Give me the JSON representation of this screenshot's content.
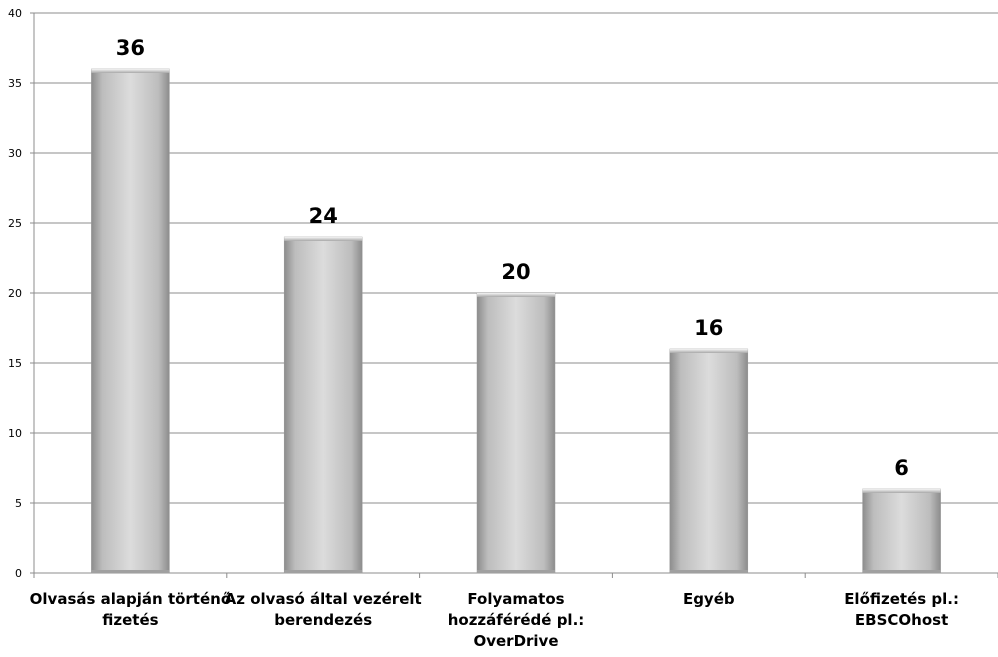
{
  "chart_data": {
    "type": "bar",
    "title": "",
    "xlabel": "",
    "ylabel": "",
    "categories": [
      [
        "Olvasás alapján történő",
        "fizetés"
      ],
      [
        "Az olvasó által vezérelt",
        "berendezés"
      ],
      [
        "Folyamatos",
        "hozzáférédé pl.:",
        "OverDrive"
      ],
      [
        "Egyéb"
      ],
      [
        "Előfizetés pl.:",
        "EBSCOhost"
      ]
    ],
    "values": [
      36,
      24,
      20,
      16,
      6
    ],
    "data_labels": [
      "36",
      "24",
      "20",
      "16",
      "6"
    ],
    "ylim": [
      0,
      40
    ],
    "yticks": [
      0,
      5,
      10,
      15,
      20,
      25,
      30,
      35,
      40
    ],
    "grid": true,
    "legend": "none",
    "colors": {
      "bar_light": "#dcdcdc",
      "bar_mid": "#bdbdbd",
      "bar_dark": "#8c8c8c",
      "grid": "#8c8c8c",
      "axis": "#8c8c8c"
    }
  }
}
